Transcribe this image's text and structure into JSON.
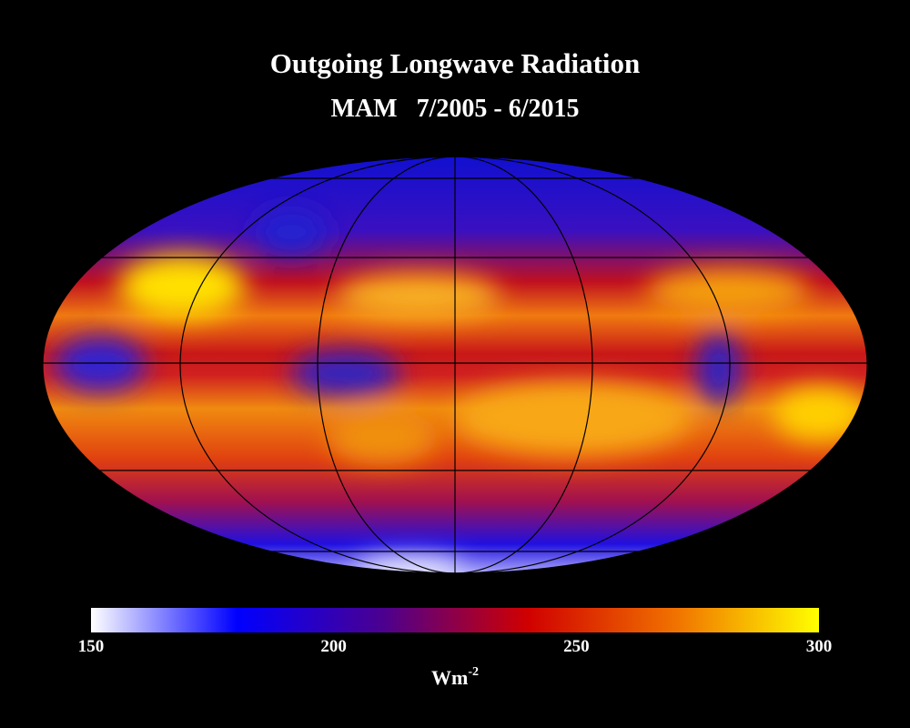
{
  "map": {
    "title": "Outgoing Longwave Radiation",
    "subtitle": "MAM   7/2005 - 6/2015",
    "colorbar": {
      "lim": [
        150,
        300
      ],
      "ticks": [
        150,
        200,
        250,
        300
      ],
      "unit": {
        "base": "Wm",
        "exponent": "-2"
      },
      "colors": [
        "#ffffff",
        "#0000ff",
        "#4b0090",
        "#d00000",
        "#f07000",
        "#ffff00"
      ]
    }
  }
}
